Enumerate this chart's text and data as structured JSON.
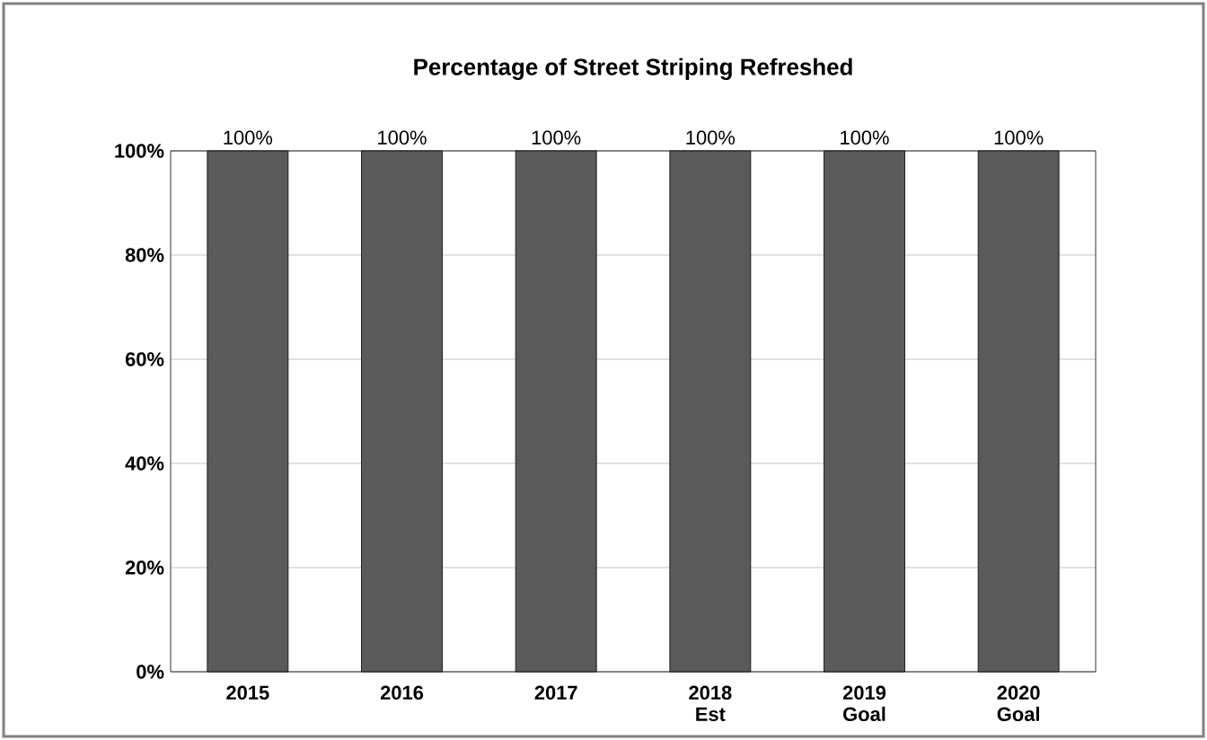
{
  "chart_data": {
    "type": "bar",
    "title": "Percentage of Street Striping Refreshed",
    "categories": [
      "2015",
      "2016",
      "2017",
      "2018 Est",
      "2019 Goal",
      "2020 Goal"
    ],
    "values": [
      100,
      100,
      100,
      100,
      100,
      100
    ],
    "value_labels": [
      "100%",
      "100%",
      "100%",
      "100%",
      "100%",
      "100%"
    ],
    "color": "#5a5a5a",
    "ylim": [
      0,
      100
    ],
    "yticks": [
      {
        "value": 0,
        "label": "0%"
      },
      {
        "value": 20,
        "label": "20%"
      },
      {
        "value": 40,
        "label": "40%"
      },
      {
        "value": 60,
        "label": "60%"
      },
      {
        "value": 80,
        "label": "80%"
      },
      {
        "value": 100,
        "label": "100%"
      }
    ],
    "grid": "y"
  }
}
